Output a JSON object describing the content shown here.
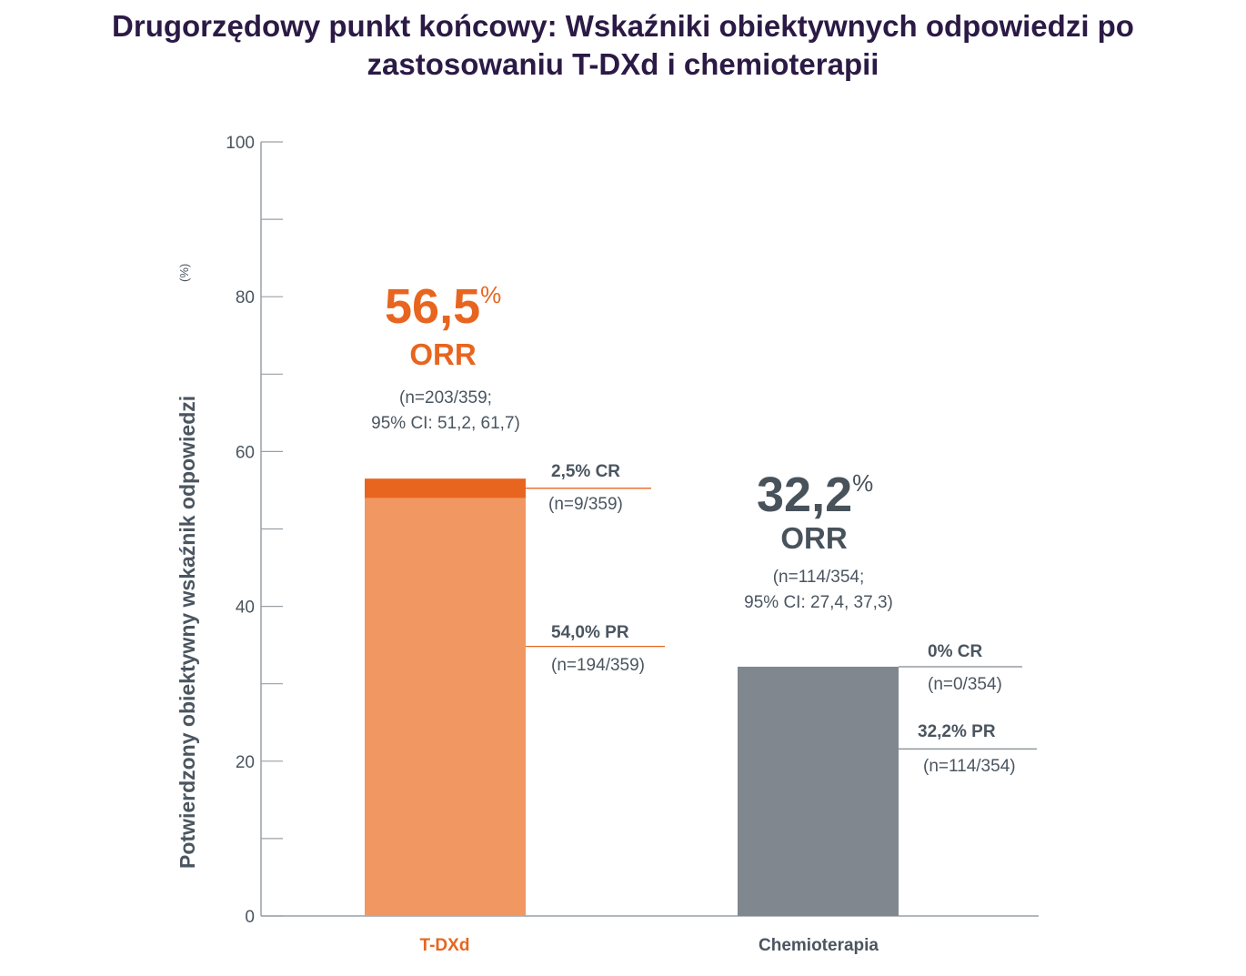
{
  "title_line1": "Drugorzędowy punkt końcowy: Wskaźniki obiektywnych odpowiedzi po",
  "title_line2": "zastosowaniu T-DXd i chemioterapii",
  "colors": {
    "tdxd_pr": "#f19762",
    "tdxd_cr": "#e8651f",
    "chemo": "#80878e",
    "axis": "#9aa0a6",
    "text": "#4a5560",
    "title": "#2b1a45"
  },
  "chart_data": {
    "type": "bar",
    "title": "Drugorzędowy punkt końcowy: Wskaźniki obiektywnych odpowiedzi po zastosowaniu T-DXd i chemioterapii",
    "xlabel": "",
    "ylabel": "Potwierdzony obiektywny wskaźnik odpowiedzi",
    "ylabel_unit": "(%)",
    "ylim": [
      0,
      100
    ],
    "yticks": [
      0,
      20,
      40,
      60,
      80,
      100
    ],
    "yticks_minor": [
      10,
      30,
      50,
      70,
      90
    ],
    "ytick_labels": [
      "0",
      "20",
      "40",
      "60",
      "80",
      "100"
    ],
    "grid": false,
    "stacked": true,
    "categories": [
      "T-DXd",
      "Chemioterapia"
    ],
    "series": [
      {
        "name": "PR",
        "values": [
          54.0,
          32.2
        ]
      },
      {
        "name": "CR",
        "values": [
          2.5,
          0
        ]
      }
    ],
    "totals": [
      56.5,
      32.2
    ],
    "annotations": [
      {
        "category": "T-DXd",
        "orr_value": "56,5",
        "orr_percent": "%",
        "orr_label": "ORR",
        "n_line": "(n=203/359;",
        "ci_line": "95% CI: 51,2, 61,7)",
        "cr_label": "2,5% CR",
        "cr_n": "(n=9/359)",
        "pr_label": "54,0% PR",
        "pr_n": "(n=194/359)"
      },
      {
        "category": "Chemioterapia",
        "orr_value": "32,2",
        "orr_percent": "%",
        "orr_label": "ORR",
        "n_line": "(n=114/354;",
        "ci_line": "95% CI: 27,4, 37,3)",
        "cr_label": "0% CR",
        "cr_n": "(n=0/354)",
        "pr_label": "32,2% PR",
        "pr_n": "(n=114/354)"
      }
    ]
  }
}
